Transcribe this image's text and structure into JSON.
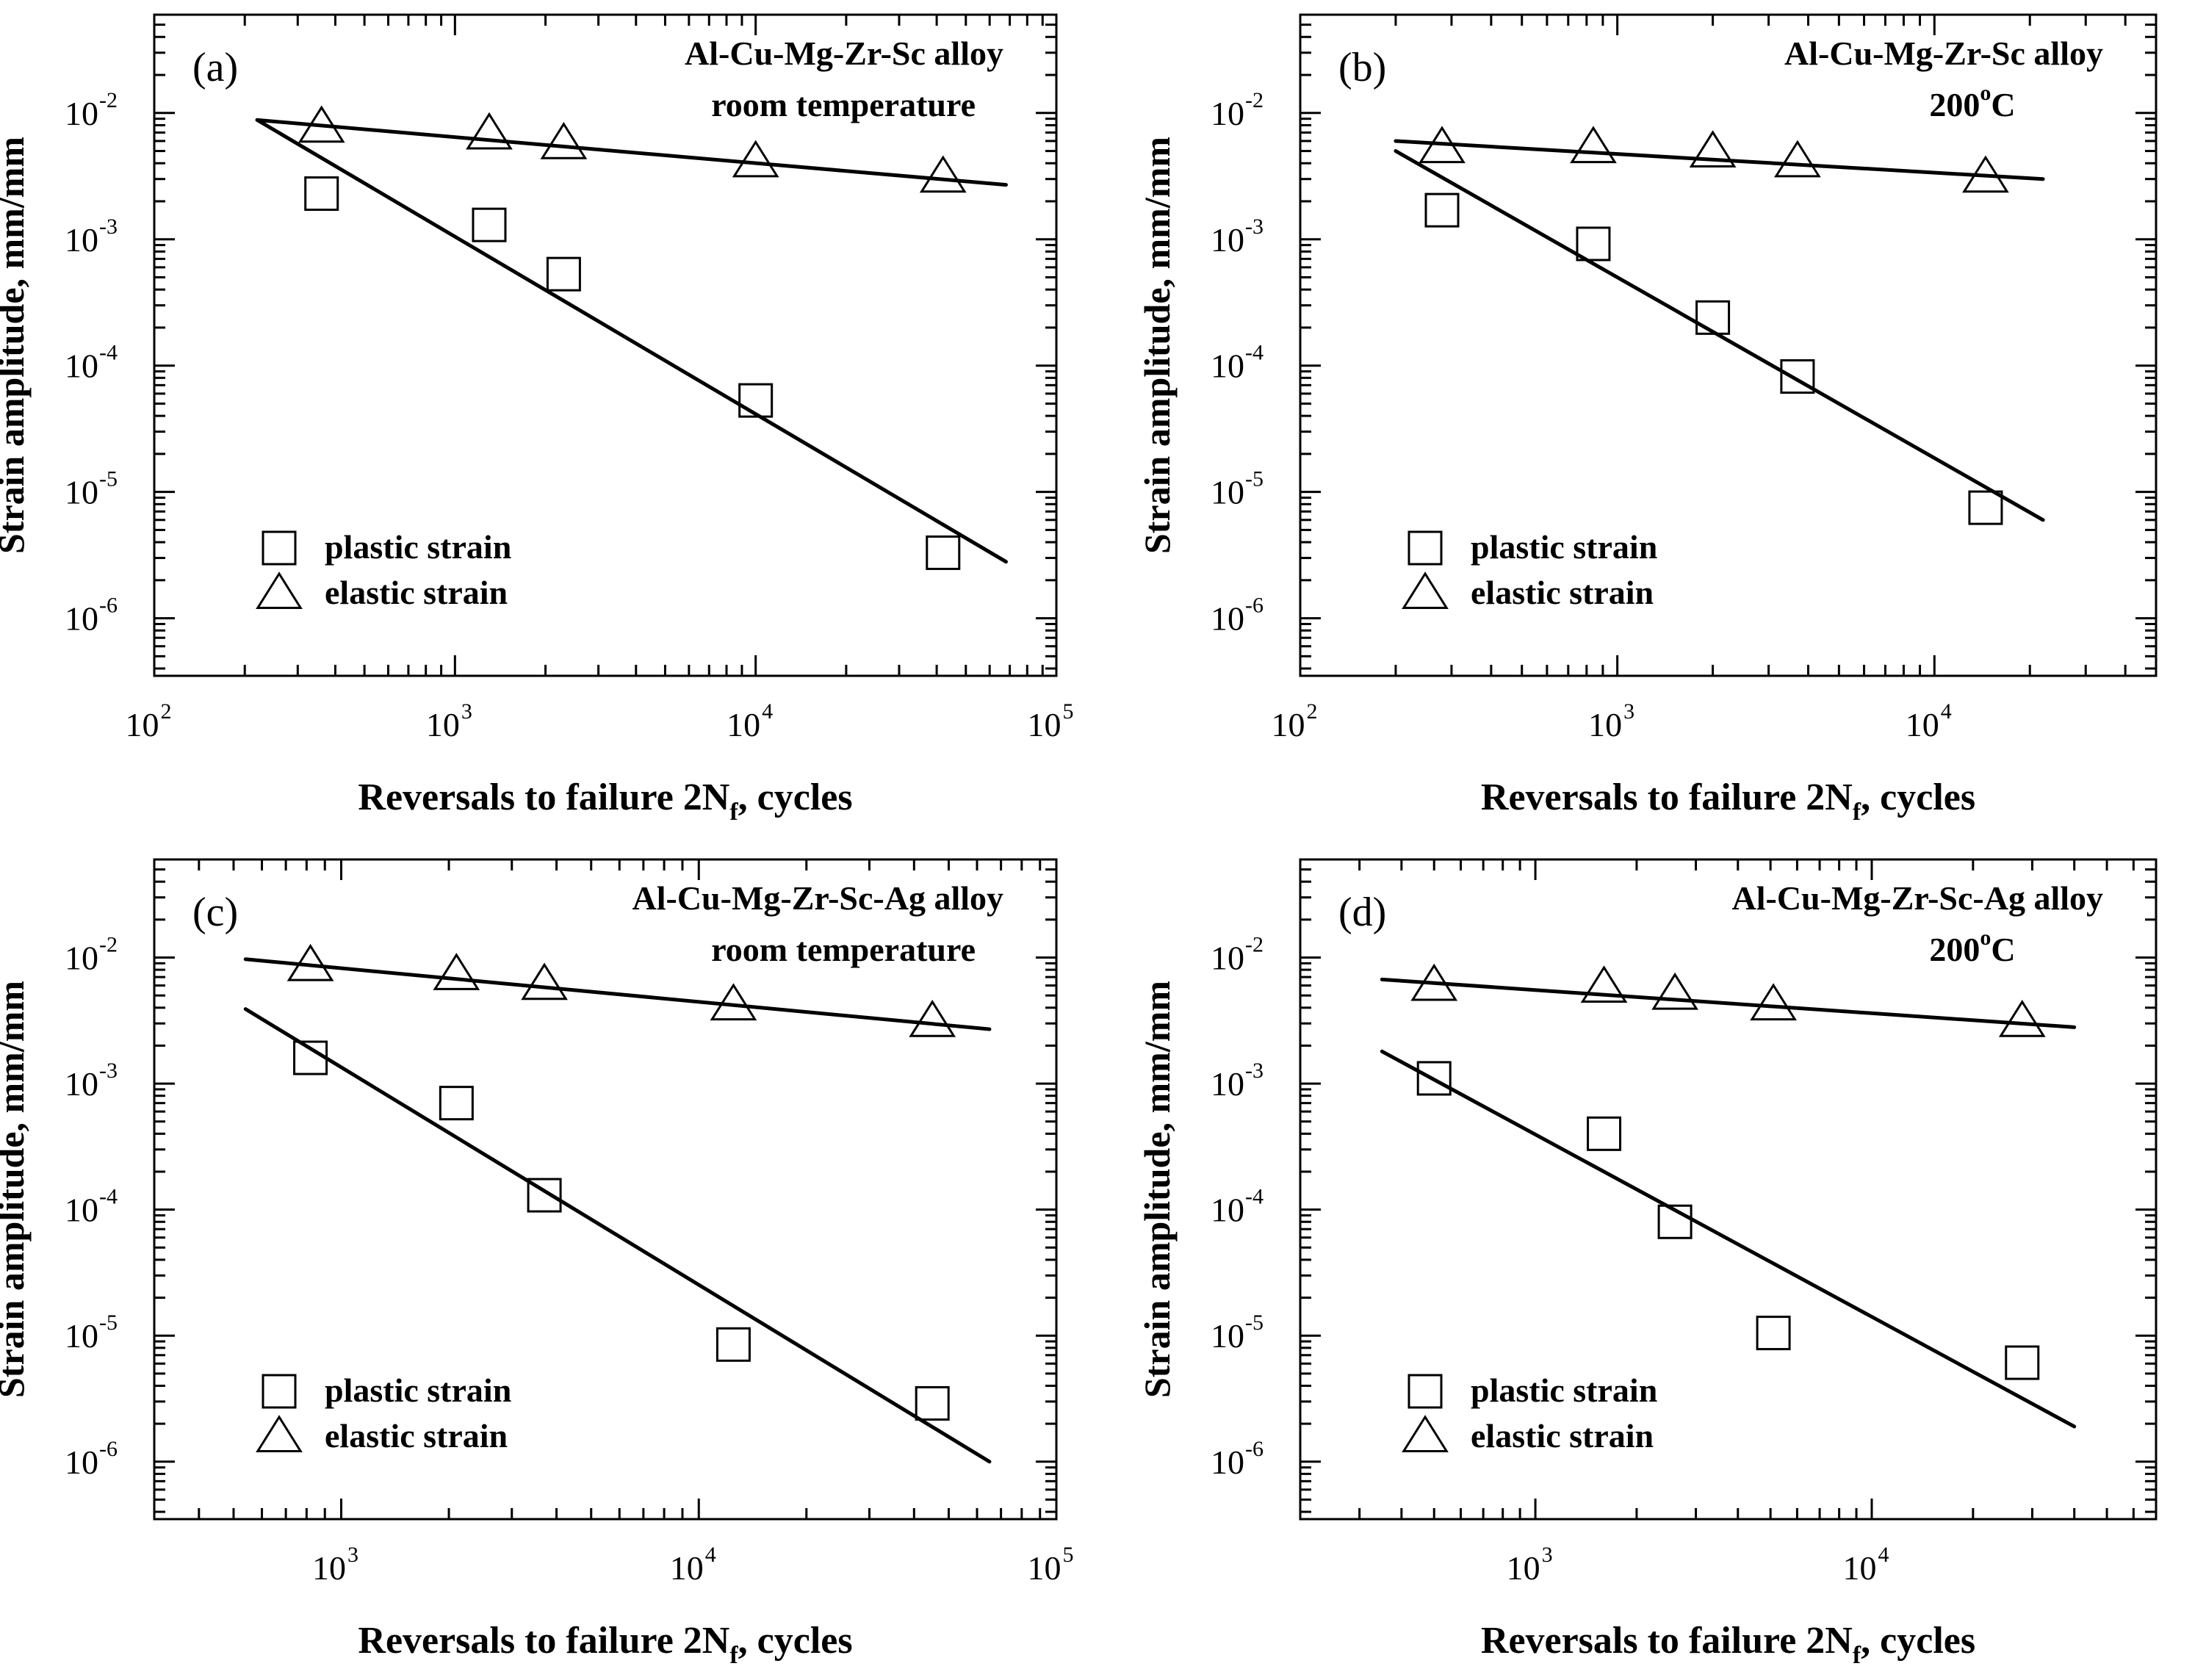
{
  "chart_data": [
    {
      "type": "scatter",
      "panel_label": "(a)",
      "alloy": "Al-Cu-Mg-Zr-Sc alloy",
      "condition": "room temperature",
      "condition_sup": "",
      "condition_tail": "",
      "xlabel_main": "Reversals to failure 2N",
      "xlabel_sub": "f",
      "xlabel_tail": ", cycles",
      "ylabel": "Strain amplitude, mm/mm",
      "xscale": "log",
      "yscale": "log",
      "xlim": [
        100,
        100000
      ],
      "ylim": [
        3.5e-07,
        0.06
      ],
      "x_ticks": [
        {
          "value": 100,
          "exp": "2"
        },
        {
          "value": 1000,
          "exp": "3"
        },
        {
          "value": 10000,
          "exp": "4"
        },
        {
          "value": 100000,
          "exp": "5"
        }
      ],
      "y_ticks": [
        {
          "value": 1e-06,
          "exp": "-6"
        },
        {
          "value": 1e-05,
          "exp": "-5"
        },
        {
          "value": 0.0001,
          "exp": "-4"
        },
        {
          "value": 0.001,
          "exp": "-3"
        },
        {
          "value": 0.01,
          "exp": "-2"
        }
      ],
      "legend_position": "bottom-left",
      "series": [
        {
          "name": "plastic strain",
          "marker": "square",
          "points": [
            {
              "x": 360,
              "y": 0.0023
            },
            {
              "x": 1300,
              "y": 0.0013
            },
            {
              "x": 2300,
              "y": 0.00053
            },
            {
              "x": 10000,
              "y": 5.3e-05
            },
            {
              "x": 42000,
              "y": 3.3e-06
            }
          ],
          "fit": [
            {
              "x": 220,
              "y": 0.0088
            },
            {
              "x": 68000,
              "y": 2.8e-06
            }
          ]
        },
        {
          "name": "elastic strain",
          "marker": "triangle",
          "points": [
            {
              "x": 360,
              "y": 0.0077
            },
            {
              "x": 1300,
              "y": 0.0068
            },
            {
              "x": 2300,
              "y": 0.0057
            },
            {
              "x": 10000,
              "y": 0.0041
            },
            {
              "x": 42000,
              "y": 0.0031
            }
          ],
          "fit": [
            {
              "x": 220,
              "y": 0.0088
            },
            {
              "x": 68000,
              "y": 0.0027
            }
          ]
        }
      ]
    },
    {
      "type": "scatter",
      "panel_label": "(b)",
      "alloy": "Al-Cu-Mg-Zr-Sc alloy",
      "condition": "200",
      "condition_sup": "o",
      "condition_tail": "C",
      "xlabel_main": "Reversals to failure 2N",
      "xlabel_sub": "f",
      "xlabel_tail": ", cycles",
      "ylabel": "Strain amplitude, mm/mm",
      "xscale": "log",
      "yscale": "log",
      "xlim": [
        100,
        50000
      ],
      "ylim": [
        3.5e-07,
        0.06
      ],
      "x_ticks": [
        {
          "value": 100,
          "exp": "2"
        },
        {
          "value": 1000,
          "exp": "3"
        },
        {
          "value": 10000,
          "exp": "4"
        }
      ],
      "y_ticks": [
        {
          "value": 1e-06,
          "exp": "-6"
        },
        {
          "value": 1e-05,
          "exp": "-5"
        },
        {
          "value": 0.0001,
          "exp": "-4"
        },
        {
          "value": 0.001,
          "exp": "-3"
        },
        {
          "value": 0.01,
          "exp": "-2"
        }
      ],
      "legend_position": "bottom-left",
      "series": [
        {
          "name": "plastic strain",
          "marker": "square",
          "points": [
            {
              "x": 280,
              "y": 0.0017
            },
            {
              "x": 840,
              "y": 0.00092
            },
            {
              "x": 2000,
              "y": 0.00024
            },
            {
              "x": 3700,
              "y": 8.2e-05
            },
            {
              "x": 14500,
              "y": 7.5e-06
            }
          ],
          "fit": [
            {
              "x": 200,
              "y": 0.005
            },
            {
              "x": 22000,
              "y": 6e-06
            }
          ]
        },
        {
          "name": "elastic strain",
          "marker": "triangle",
          "points": [
            {
              "x": 280,
              "y": 0.0053
            },
            {
              "x": 840,
              "y": 0.0053
            },
            {
              "x": 2000,
              "y": 0.0049
            },
            {
              "x": 3700,
              "y": 0.0041
            },
            {
              "x": 14500,
              "y": 0.0031
            }
          ],
          "fit": [
            {
              "x": 200,
              "y": 0.006
            },
            {
              "x": 22000,
              "y": 0.003
            }
          ]
        }
      ]
    },
    {
      "type": "scatter",
      "panel_label": "(c)",
      "alloy": "Al-Cu-Mg-Zr-Sc-Ag alloy",
      "condition": "room temperature",
      "condition_sup": "",
      "condition_tail": "",
      "xlabel_main": "Reversals to failure 2N",
      "xlabel_sub": "f",
      "xlabel_tail": ", cycles",
      "ylabel": "Strain amplitude, mm/mm",
      "xscale": "log",
      "yscale": "log",
      "xlim": [
        300,
        100000
      ],
      "ylim": [
        3.5e-07,
        0.06
      ],
      "x_ticks": [
        {
          "value": 1000,
          "exp": "3"
        },
        {
          "value": 10000,
          "exp": "4"
        },
        {
          "value": 100000,
          "exp": "5"
        }
      ],
      "y_ticks": [
        {
          "value": 1e-06,
          "exp": "-6"
        },
        {
          "value": 1e-05,
          "exp": "-5"
        },
        {
          "value": 0.0001,
          "exp": "-4"
        },
        {
          "value": 0.001,
          "exp": "-3"
        },
        {
          "value": 0.01,
          "exp": "-2"
        }
      ],
      "legend_position": "bottom-left",
      "series": [
        {
          "name": "plastic strain",
          "marker": "square",
          "points": [
            {
              "x": 820,
              "y": 0.0016
            },
            {
              "x": 2100,
              "y": 0.0007
            },
            {
              "x": 3700,
              "y": 0.00013
            },
            {
              "x": 12500,
              "y": 8.5e-06
            },
            {
              "x": 45000,
              "y": 2.9e-06
            }
          ],
          "fit": [
            {
              "x": 540,
              "y": 0.0039
            },
            {
              "x": 65000,
              "y": 1e-06
            }
          ]
        },
        {
          "name": "elastic strain",
          "marker": "triangle",
          "points": [
            {
              "x": 820,
              "y": 0.0086
            },
            {
              "x": 2100,
              "y": 0.0073
            },
            {
              "x": 3700,
              "y": 0.0061
            },
            {
              "x": 12500,
              "y": 0.0042
            },
            {
              "x": 45000,
              "y": 0.0031
            }
          ],
          "fit": [
            {
              "x": 540,
              "y": 0.0097
            },
            {
              "x": 65000,
              "y": 0.0027
            }
          ]
        }
      ]
    },
    {
      "type": "scatter",
      "panel_label": "(d)",
      "alloy": "Al-Cu-Mg-Zr-Sc-Ag alloy",
      "condition": "200",
      "condition_sup": "o",
      "condition_tail": "C",
      "xlabel_main": "Reversals to failure 2N",
      "xlabel_sub": "f",
      "xlabel_tail": ", cycles",
      "ylabel": "Strain amplitude, mm/mm",
      "xscale": "log",
      "yscale": "log",
      "xlim": [
        200,
        70000
      ],
      "ylim": [
        3.5e-07,
        0.06
      ],
      "x_ticks": [
        {
          "value": 1000,
          "exp": "3"
        },
        {
          "value": 10000,
          "exp": "4"
        }
      ],
      "y_ticks": [
        {
          "value": 1e-06,
          "exp": "-6"
        },
        {
          "value": 1e-05,
          "exp": "-5"
        },
        {
          "value": 0.0001,
          "exp": "-4"
        },
        {
          "value": 0.001,
          "exp": "-3"
        },
        {
          "value": 0.01,
          "exp": "-2"
        }
      ],
      "legend_position": "bottom-left",
      "series": [
        {
          "name": "plastic strain",
          "marker": "square",
          "points": [
            {
              "x": 500,
              "y": 0.0011
            },
            {
              "x": 1600,
              "y": 0.0004
            },
            {
              "x": 2600,
              "y": 8e-05
            },
            {
              "x": 5100,
              "y": 1.05e-05
            },
            {
              "x": 28000,
              "y": 6.1e-06
            }
          ],
          "fit": [
            {
              "x": 350,
              "y": 0.0018
            },
            {
              "x": 40000,
              "y": 1.9e-06
            }
          ]
        },
        {
          "name": "elastic strain",
          "marker": "triangle",
          "points": [
            {
              "x": 500,
              "y": 0.006
            },
            {
              "x": 1600,
              "y": 0.0058
            },
            {
              "x": 2600,
              "y": 0.0051
            },
            {
              "x": 5100,
              "y": 0.0042
            },
            {
              "x": 28000,
              "y": 0.0031
            }
          ],
          "fit": [
            {
              "x": 350,
              "y": 0.0067
            },
            {
              "x": 40000,
              "y": 0.0028
            }
          ]
        }
      ]
    }
  ]
}
